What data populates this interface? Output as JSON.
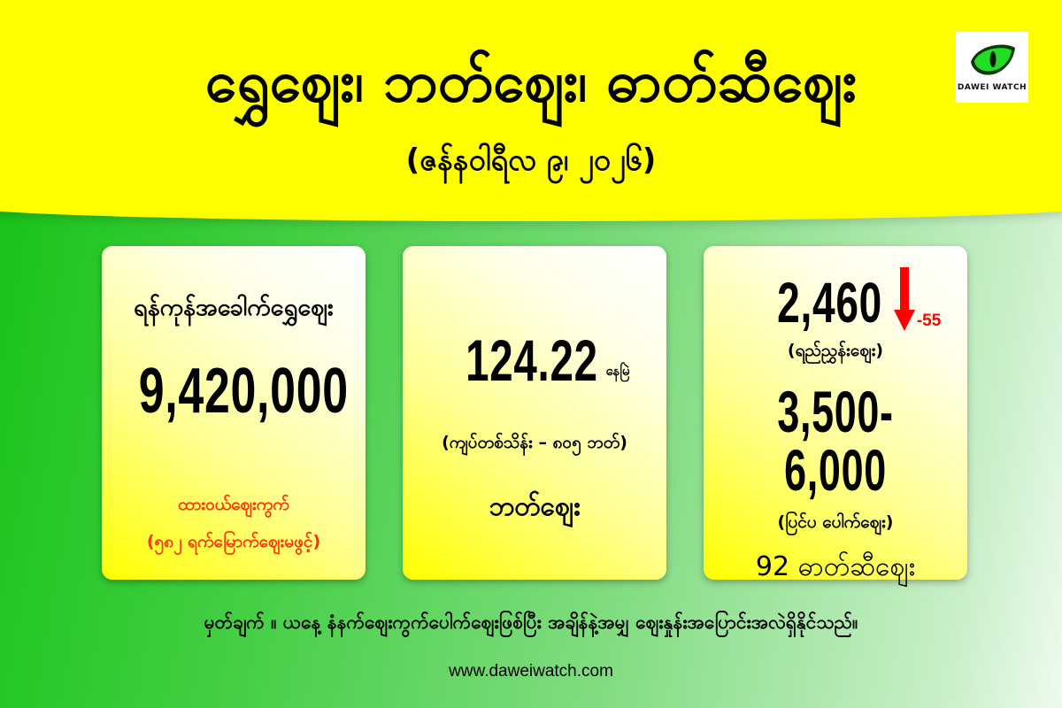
{
  "header": {
    "title": "ရွှေဈေး၊ ဘတ်ဈေး၊ ဓာတ်ဆီဈေး",
    "date": "(ဇန်နဝါရီလ ၉၊ ၂၀၂၆)",
    "logo_text": "DAWEI WATCH"
  },
  "colors": {
    "top_band": "#ffff00",
    "logo_eye": "#22dd22",
    "down_arrow": "#ff0000",
    "note_red": "#ff3300"
  },
  "cards": [
    {
      "label": "ရန်ကုန်အခေါက်ရွှေဈေး",
      "value": "9,420,000",
      "note1": "ထားဝယ်ဈေးကွက်",
      "note2": "(၅၈၂ ရက်မြောက်ဈေးမဖွင့်)"
    },
    {
      "value": "124.22",
      "unit": "နေမြဲ",
      "note": "(ကျပ်တစ်သိန်း – ၈၀၅ ဘတ်)",
      "label": "ဘတ်ဈေး"
    },
    {
      "value": "2,460",
      "change": "-55",
      "change_icon": "arrow-down",
      "value_label": "(ရည်ညွှန်းဈေး)",
      "range": "3,500-6,000",
      "range_label": "(ပြင်ပ ပေါက်ဈေး)",
      "label": "92 ဓာတ်ဆီဈေး"
    }
  ],
  "footer": {
    "note": "မှတ်ချက် ။ ယနေ့ နံနက်ဈေးကွက်ပေါက်ဈေးဖြစ်ပြီး အချိန်နဲ့အမျှ ဈေးနှုန်းအပြောင်းအလဲရှိနိုင်သည်။",
    "url": "www.daweiwatch.com"
  }
}
